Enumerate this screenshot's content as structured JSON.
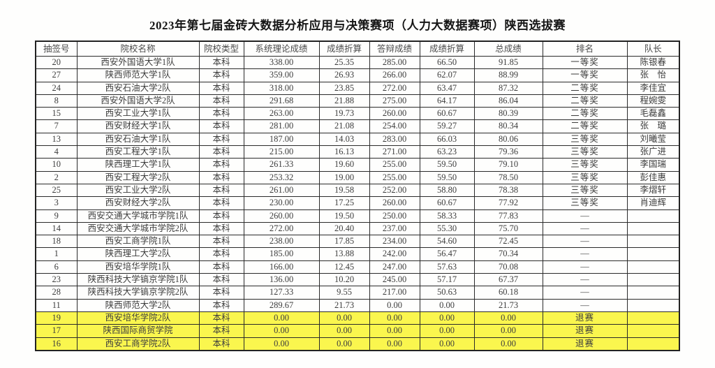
{
  "page": {
    "title": "2023年第七届金砖大数据分析应用与决策赛项（人力大数据赛项）陕西选拔赛"
  },
  "colors": {
    "highlight_row": "#FAF64E"
  },
  "table": {
    "headers": [
      "抽签号",
      "院校名称",
      "院校类型",
      "系统理论成绩",
      "成绩折算",
      "答辩成绩",
      "成绩折算",
      "总成绩",
      "排名",
      "队长"
    ],
    "rows": [
      {
        "draw": "20",
        "name": "西安外国语大学1队",
        "type": "本科",
        "theory": "338.00",
        "conv1": "25.35",
        "defense": "285.00",
        "conv2": "66.50",
        "total": "91.85",
        "rank": "一等奖",
        "captain": "陈银春",
        "highlight": false
      },
      {
        "draw": "27",
        "name": "陕西师范大学1队",
        "type": "本科",
        "theory": "359.00",
        "conv1": "26.93",
        "defense": "266.00",
        "conv2": "62.07",
        "total": "88.99",
        "rank": "一等奖",
        "captain": "张　怡",
        "highlight": false
      },
      {
        "draw": "24",
        "name": "西安石油大学2队",
        "type": "本科",
        "theory": "318.00",
        "conv1": "23.85",
        "defense": "272.00",
        "conv2": "63.47",
        "total": "87.32",
        "rank": "二等奖",
        "captain": "李佳宜",
        "highlight": false
      },
      {
        "draw": "8",
        "name": "西安外国语大学2队",
        "type": "本科",
        "theory": "291.68",
        "conv1": "21.88",
        "defense": "275.00",
        "conv2": "64.17",
        "total": "86.04",
        "rank": "二等奖",
        "captain": "程婉雯",
        "highlight": false
      },
      {
        "draw": "15",
        "name": "西安工业大学1队",
        "type": "本科",
        "theory": "263.00",
        "conv1": "19.73",
        "defense": "260.00",
        "conv2": "60.67",
        "total": "80.39",
        "rank": "二等奖",
        "captain": "毛磊鑫",
        "highlight": false
      },
      {
        "draw": "7",
        "name": "西安财经大学1队",
        "type": "本科",
        "theory": "281.00",
        "conv1": "21.08",
        "defense": "254.00",
        "conv2": "59.27",
        "total": "80.34",
        "rank": "二等奖",
        "captain": "张　璐",
        "highlight": false
      },
      {
        "draw": "13",
        "name": "西安石油大学1队",
        "type": "本科",
        "theory": "187.00",
        "conv1": "14.03",
        "defense": "283.00",
        "conv2": "66.03",
        "total": "80.06",
        "rank": "三等奖",
        "captain": "刘曦莹",
        "highlight": false
      },
      {
        "draw": "4",
        "name": "西安工程大学1队",
        "type": "本科",
        "theory": "215.00",
        "conv1": "16.13",
        "defense": "271.00",
        "conv2": "63.23",
        "total": "79.36",
        "rank": "三等奖",
        "captain": "张广进",
        "highlight": false
      },
      {
        "draw": "10",
        "name": "陕西理工大学1队",
        "type": "本科",
        "theory": "261.33",
        "conv1": "19.60",
        "defense": "255.00",
        "conv2": "59.50",
        "total": "79.10",
        "rank": "三等奖",
        "captain": "李国瑞",
        "highlight": false
      },
      {
        "draw": "2",
        "name": "西安工程大学2队",
        "type": "本科",
        "theory": "253.32",
        "conv1": "19.00",
        "defense": "255.00",
        "conv2": "59.50",
        "total": "78.50",
        "rank": "三等奖",
        "captain": "彭佳惠",
        "highlight": false
      },
      {
        "draw": "25",
        "name": "西安工业大学2队",
        "type": "本科",
        "theory": "261.00",
        "conv1": "19.58",
        "defense": "252.00",
        "conv2": "58.80",
        "total": "78.38",
        "rank": "三等奖",
        "captain": "李熠轩",
        "highlight": false
      },
      {
        "draw": "3",
        "name": "西安财经大学2队",
        "type": "本科",
        "theory": "230.00",
        "conv1": "17.25",
        "defense": "260.00",
        "conv2": "60.67",
        "total": "77.92",
        "rank": "三等奖",
        "captain": "肖迪辉",
        "highlight": false
      },
      {
        "draw": "9",
        "name": "西安交通大学城市学院1队",
        "type": "本科",
        "theory": "260.00",
        "conv1": "19.50",
        "defense": "250.00",
        "conv2": "58.33",
        "total": "77.83",
        "rank": "—",
        "captain": "",
        "highlight": false
      },
      {
        "draw": "14",
        "name": "西安交通大学城市学院2队",
        "type": "本科",
        "theory": "272.00",
        "conv1": "20.40",
        "defense": "237.00",
        "conv2": "55.30",
        "total": "75.70",
        "rank": "—",
        "captain": "",
        "highlight": false
      },
      {
        "draw": "18",
        "name": "西安工商学院1队",
        "type": "本科",
        "theory": "238.00",
        "conv1": "17.85",
        "defense": "234.00",
        "conv2": "54.60",
        "total": "72.45",
        "rank": "—",
        "captain": "",
        "highlight": false
      },
      {
        "draw": "1",
        "name": "陕西理工大学2队",
        "type": "本科",
        "theory": "185.00",
        "conv1": "13.88",
        "defense": "242.00",
        "conv2": "56.47",
        "total": "70.34",
        "rank": "—",
        "captain": "",
        "highlight": false
      },
      {
        "draw": "6",
        "name": "西安培华学院1队",
        "type": "本科",
        "theory": "166.00",
        "conv1": "12.45",
        "defense": "247.00",
        "conv2": "57.63",
        "total": "70.08",
        "rank": "—",
        "captain": "",
        "highlight": false
      },
      {
        "draw": "23",
        "name": "陕西科技大学镐京学院1队",
        "type": "本科",
        "theory": "136.00",
        "conv1": "10.20",
        "defense": "245.00",
        "conv2": "57.17",
        "total": "67.37",
        "rank": "—",
        "captain": "",
        "highlight": false
      },
      {
        "draw": "28",
        "name": "陕西科技大学镐京学院2队",
        "type": "本科",
        "theory": "127.33",
        "conv1": "9.55",
        "defense": "217.00",
        "conv2": "50.63",
        "total": "60.18",
        "rank": "—",
        "captain": "",
        "highlight": false
      },
      {
        "draw": "11",
        "name": "陕西师范大学2队",
        "type": "本科",
        "theory": "289.67",
        "conv1": "21.73",
        "defense": "0.00",
        "conv2": "0.00",
        "total": "21.73",
        "rank": "—",
        "captain": "",
        "highlight": false
      },
      {
        "draw": "19",
        "name": "西安培华学院2队",
        "type": "本科",
        "theory": "0.00",
        "conv1": "0.00",
        "defense": "0.00",
        "conv2": "0.00",
        "total": "0.00",
        "rank": "退赛",
        "captain": "",
        "highlight": true
      },
      {
        "draw": "17",
        "name": "陕西国际商贸学院",
        "type": "本科",
        "theory": "0.00",
        "conv1": "0.00",
        "defense": "0.00",
        "conv2": "0.00",
        "total": "0.00",
        "rank": "退赛",
        "captain": "",
        "highlight": true
      },
      {
        "draw": "16",
        "name": "西安工商学院2队",
        "type": "本科",
        "theory": "0.00",
        "conv1": "0.00",
        "defense": "0.00",
        "conv2": "0.00",
        "total": "0.00",
        "rank": "退赛",
        "captain": "",
        "highlight": true
      }
    ]
  }
}
